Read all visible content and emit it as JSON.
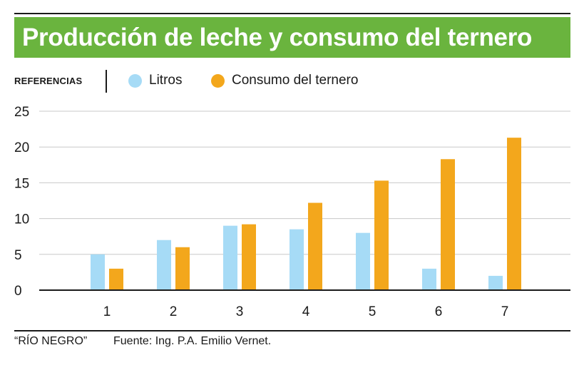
{
  "header": {
    "title": "Producción de leche y consumo del ternero"
  },
  "legend": {
    "label": "REFERENCIAS",
    "items": [
      {
        "label": "Litros",
        "color": "#a6dbf6"
      },
      {
        "label": "Consumo del ternero",
        "color": "#f3a71c"
      }
    ]
  },
  "chart_data": {
    "type": "bar",
    "title": "Producción de leche y consumo del ternero",
    "xlabel": "",
    "ylabel": "",
    "categories": [
      "1",
      "2",
      "3",
      "4",
      "5",
      "6",
      "7"
    ],
    "series": [
      {
        "name": "Litros",
        "color": "#a6dbf6",
        "values": [
          5,
          7,
          9,
          8.5,
          8,
          3,
          2
        ]
      },
      {
        "name": "Consumo del ternero",
        "color": "#f3a71c",
        "values": [
          3,
          6,
          9.2,
          12.2,
          15.3,
          18.3,
          21.3
        ]
      }
    ],
    "ylim": [
      0,
      25
    ],
    "yticks": [
      "0",
      "5",
      "10",
      "15",
      "20",
      "25"
    ],
    "grid": true,
    "legend_position": "top-left"
  },
  "footer": {
    "credit": "“RÍO NEGRO”",
    "source": "Fuente: Ing. P.A. Emilio Vernet."
  }
}
